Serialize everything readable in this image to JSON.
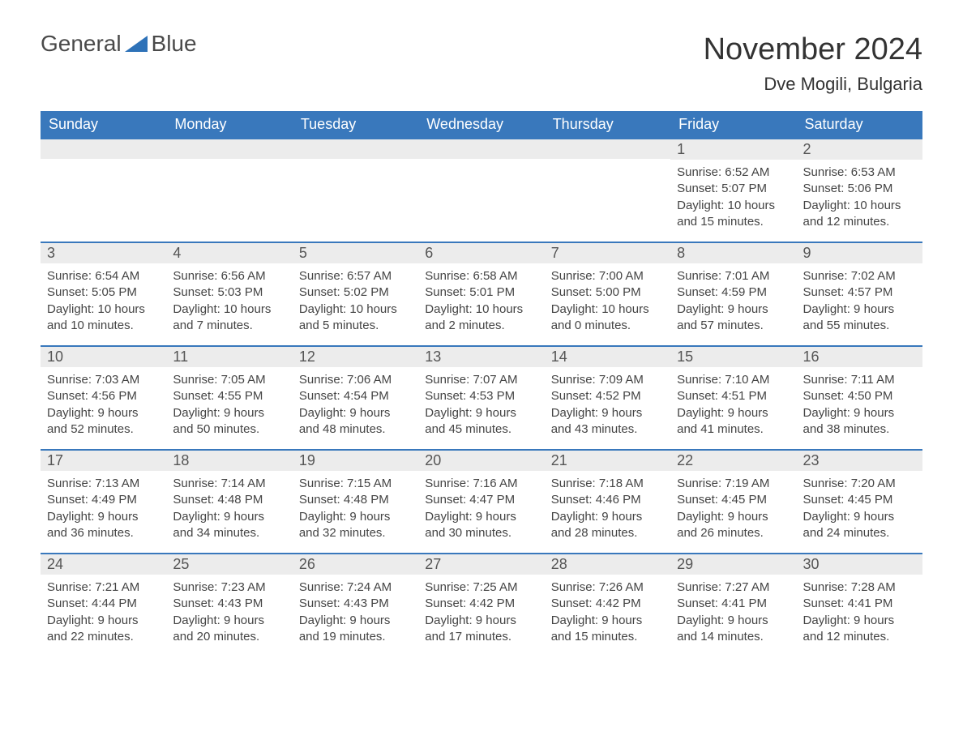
{
  "logo": {
    "word1": "General",
    "word2": "Blue"
  },
  "title": "November 2024",
  "location": "Dve Mogili, Bulgaria",
  "colors": {
    "header_bg": "#3978bc",
    "header_text": "#ffffff",
    "daynum_bg": "#ececec",
    "border": "#3978bc",
    "logo_blue": "#2e72b8"
  },
  "weekdays": [
    "Sunday",
    "Monday",
    "Tuesday",
    "Wednesday",
    "Thursday",
    "Friday",
    "Saturday"
  ],
  "firstDayOffset": 5,
  "days": [
    {
      "n": 1,
      "sunrise": "6:52 AM",
      "sunset": "5:07 PM",
      "daylight": "10 hours and 15 minutes."
    },
    {
      "n": 2,
      "sunrise": "6:53 AM",
      "sunset": "5:06 PM",
      "daylight": "10 hours and 12 minutes."
    },
    {
      "n": 3,
      "sunrise": "6:54 AM",
      "sunset": "5:05 PM",
      "daylight": "10 hours and 10 minutes."
    },
    {
      "n": 4,
      "sunrise": "6:56 AM",
      "sunset": "5:03 PM",
      "daylight": "10 hours and 7 minutes."
    },
    {
      "n": 5,
      "sunrise": "6:57 AM",
      "sunset": "5:02 PM",
      "daylight": "10 hours and 5 minutes."
    },
    {
      "n": 6,
      "sunrise": "6:58 AM",
      "sunset": "5:01 PM",
      "daylight": "10 hours and 2 minutes."
    },
    {
      "n": 7,
      "sunrise": "7:00 AM",
      "sunset": "5:00 PM",
      "daylight": "10 hours and 0 minutes."
    },
    {
      "n": 8,
      "sunrise": "7:01 AM",
      "sunset": "4:59 PM",
      "daylight": "9 hours and 57 minutes."
    },
    {
      "n": 9,
      "sunrise": "7:02 AM",
      "sunset": "4:57 PM",
      "daylight": "9 hours and 55 minutes."
    },
    {
      "n": 10,
      "sunrise": "7:03 AM",
      "sunset": "4:56 PM",
      "daylight": "9 hours and 52 minutes."
    },
    {
      "n": 11,
      "sunrise": "7:05 AM",
      "sunset": "4:55 PM",
      "daylight": "9 hours and 50 minutes."
    },
    {
      "n": 12,
      "sunrise": "7:06 AM",
      "sunset": "4:54 PM",
      "daylight": "9 hours and 48 minutes."
    },
    {
      "n": 13,
      "sunrise": "7:07 AM",
      "sunset": "4:53 PM",
      "daylight": "9 hours and 45 minutes."
    },
    {
      "n": 14,
      "sunrise": "7:09 AM",
      "sunset": "4:52 PM",
      "daylight": "9 hours and 43 minutes."
    },
    {
      "n": 15,
      "sunrise": "7:10 AM",
      "sunset": "4:51 PM",
      "daylight": "9 hours and 41 minutes."
    },
    {
      "n": 16,
      "sunrise": "7:11 AM",
      "sunset": "4:50 PM",
      "daylight": "9 hours and 38 minutes."
    },
    {
      "n": 17,
      "sunrise": "7:13 AM",
      "sunset": "4:49 PM",
      "daylight": "9 hours and 36 minutes."
    },
    {
      "n": 18,
      "sunrise": "7:14 AM",
      "sunset": "4:48 PM",
      "daylight": "9 hours and 34 minutes."
    },
    {
      "n": 19,
      "sunrise": "7:15 AM",
      "sunset": "4:48 PM",
      "daylight": "9 hours and 32 minutes."
    },
    {
      "n": 20,
      "sunrise": "7:16 AM",
      "sunset": "4:47 PM",
      "daylight": "9 hours and 30 minutes."
    },
    {
      "n": 21,
      "sunrise": "7:18 AM",
      "sunset": "4:46 PM",
      "daylight": "9 hours and 28 minutes."
    },
    {
      "n": 22,
      "sunrise": "7:19 AM",
      "sunset": "4:45 PM",
      "daylight": "9 hours and 26 minutes."
    },
    {
      "n": 23,
      "sunrise": "7:20 AM",
      "sunset": "4:45 PM",
      "daylight": "9 hours and 24 minutes."
    },
    {
      "n": 24,
      "sunrise": "7:21 AM",
      "sunset": "4:44 PM",
      "daylight": "9 hours and 22 minutes."
    },
    {
      "n": 25,
      "sunrise": "7:23 AM",
      "sunset": "4:43 PM",
      "daylight": "9 hours and 20 minutes."
    },
    {
      "n": 26,
      "sunrise": "7:24 AM",
      "sunset": "4:43 PM",
      "daylight": "9 hours and 19 minutes."
    },
    {
      "n": 27,
      "sunrise": "7:25 AM",
      "sunset": "4:42 PM",
      "daylight": "9 hours and 17 minutes."
    },
    {
      "n": 28,
      "sunrise": "7:26 AM",
      "sunset": "4:42 PM",
      "daylight": "9 hours and 15 minutes."
    },
    {
      "n": 29,
      "sunrise": "7:27 AM",
      "sunset": "4:41 PM",
      "daylight": "9 hours and 14 minutes."
    },
    {
      "n": 30,
      "sunrise": "7:28 AM",
      "sunset": "4:41 PM",
      "daylight": "9 hours and 12 minutes."
    }
  ],
  "labels": {
    "sunrise": "Sunrise: ",
    "sunset": "Sunset: ",
    "daylight": "Daylight: "
  }
}
